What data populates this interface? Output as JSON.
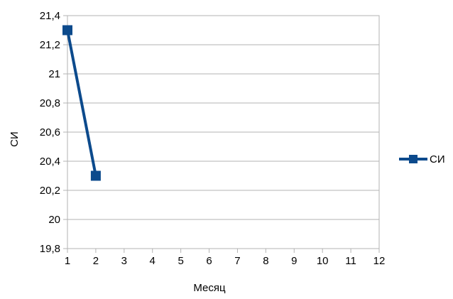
{
  "chart_data": {
    "type": "line",
    "title": "",
    "xlabel": "Месяц",
    "ylabel": "СИ",
    "x_ticks": [
      "1",
      "2",
      "3",
      "4",
      "5",
      "6",
      "7",
      "8",
      "9",
      "10",
      "11",
      "12"
    ],
    "y_ticks": [
      "19,8",
      "20",
      "20,2",
      "20,4",
      "20,6",
      "20,8",
      "21",
      "21,2",
      "21,4"
    ],
    "xlim": [
      1,
      12
    ],
    "ylim": [
      19.8,
      21.4
    ],
    "grid": "horizontal",
    "legend_position": "right",
    "series": [
      {
        "name": "СИ",
        "color": "#0c4a8c",
        "marker": "square",
        "x": [
          1,
          2
        ],
        "y": [
          21.3,
          20.3
        ]
      }
    ]
  }
}
